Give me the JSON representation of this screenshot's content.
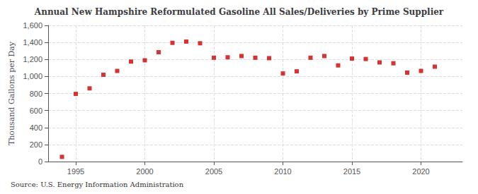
{
  "chart_data": {
    "type": "scatter",
    "title": "Annual New Hampshire Reformulated Gasoline All Sales/Deliveries by Prime Supplier",
    "ylabel": "Thousand Gallons per Day",
    "annotation": "Source: U.S. Energy Information Administration",
    "x": [
      1994,
      1995,
      1996,
      1997,
      1998,
      1999,
      2000,
      2001,
      2002,
      2003,
      2004,
      2005,
      2006,
      2007,
      2008,
      2009,
      2010,
      2011,
      2012,
      2013,
      2014,
      2015,
      2016,
      2017,
      2018,
      2019,
      2020,
      2021
    ],
    "values": [
      55,
      795,
      860,
      1020,
      1065,
      1175,
      1190,
      1285,
      1395,
      1410,
      1390,
      1220,
      1225,
      1240,
      1220,
      1215,
      1035,
      1060,
      1220,
      1240,
      1130,
      1210,
      1205,
      1165,
      1155,
      1045,
      1065,
      1115
    ],
    "color": "#cc0000",
    "marker": "square",
    "xlim": [
      1993,
      2023
    ],
    "xticks": [
      1995,
      2000,
      2005,
      2010,
      2015,
      2020
    ],
    "ylim": [
      0,
      1600
    ],
    "yticks": [
      0,
      200,
      400,
      600,
      800,
      {
        "value": 1000,
        "label": "1,000"
      },
      {
        "value": 1200,
        "label": "1,200"
      },
      {
        "value": 1400,
        "label": "1,400"
      },
      {
        "value": 1600,
        "label": "1,600"
      }
    ],
    "grid": true
  }
}
